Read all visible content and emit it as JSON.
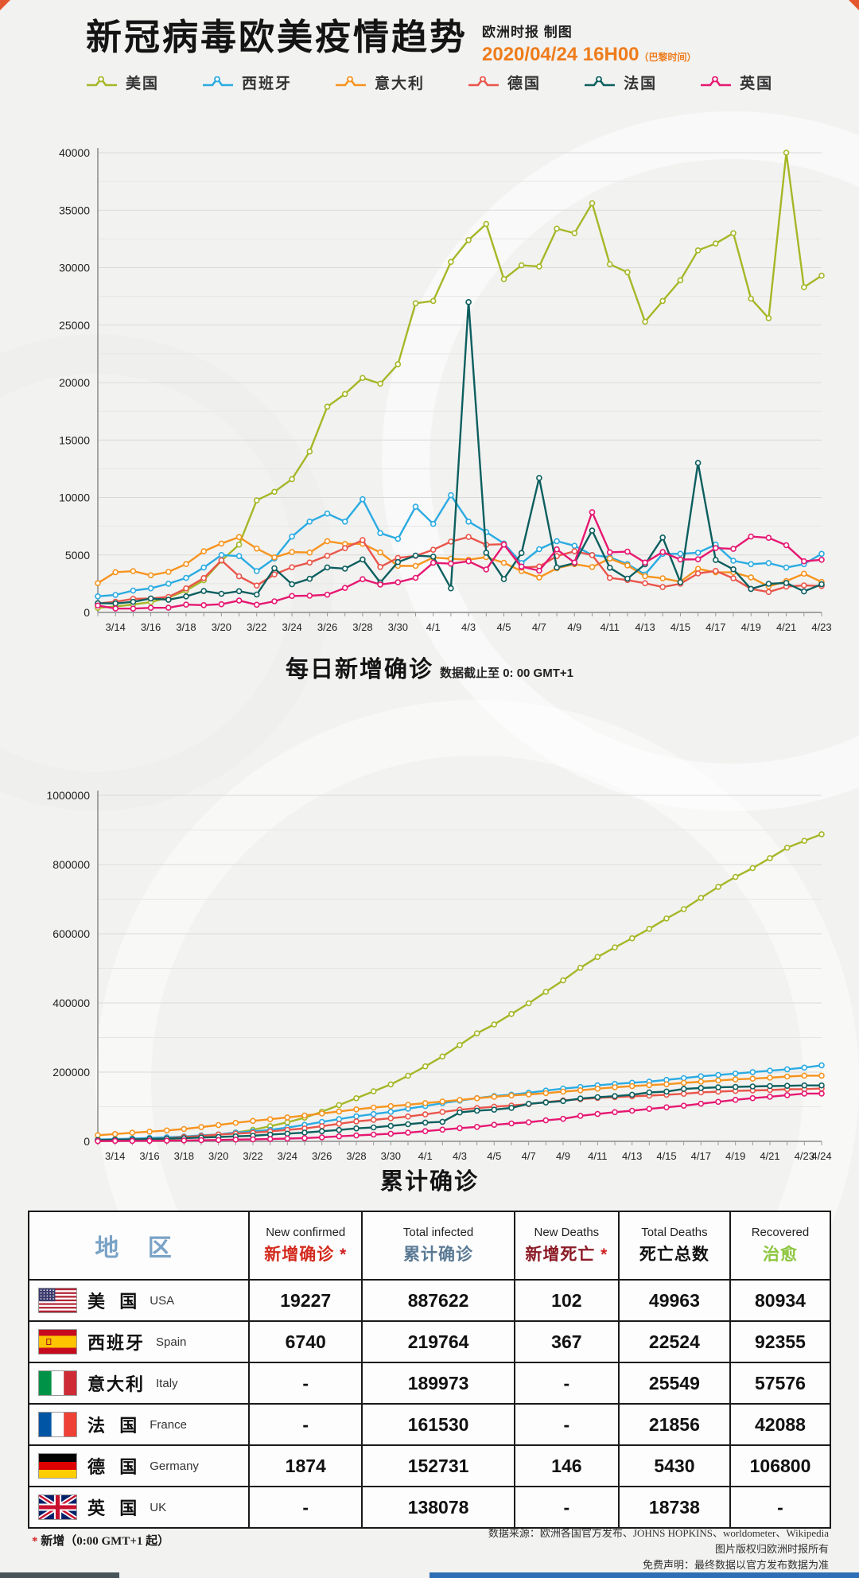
{
  "header": {
    "title": "新冠病毒欧美疫情趋势",
    "credit": "欧洲时报 制图",
    "datetime": "2020/04/24 16H00",
    "timezone": "（巴黎时间）",
    "accent_color": "#ee7c1b"
  },
  "legend": [
    {
      "label": "美国",
      "color": "#a6b727"
    },
    {
      "label": "西班牙",
      "color": "#2aabe2"
    },
    {
      "label": "意大利",
      "color": "#f7941e"
    },
    {
      "label": "德国",
      "color": "#e9554a"
    },
    {
      "label": "法国",
      "color": "#0d5f5f"
    },
    {
      "label": "英国",
      "color": "#e61871"
    }
  ],
  "chart_data": [
    {
      "type": "line",
      "title": "每日新增确诊",
      "subtitle": "数据截止至 0: 00 GMT+1",
      "ylim": [
        0,
        40000
      ],
      "ytick_step": 5000,
      "minor_step": 2500,
      "grid": true,
      "legend_position": "top",
      "x": [
        "3/13",
        "3/14",
        "3/15",
        "3/16",
        "3/17",
        "3/18",
        "3/19",
        "3/20",
        "3/21",
        "3/22",
        "3/23",
        "3/24",
        "3/25",
        "3/26",
        "3/27",
        "3/28",
        "3/29",
        "3/30",
        "3/31",
        "4/1",
        "4/2",
        "4/3",
        "4/4",
        "4/5",
        "4/6",
        "4/7",
        "4/8",
        "4/9",
        "4/10",
        "4/11",
        "4/12",
        "4/13",
        "4/14",
        "4/15",
        "4/16",
        "4/17",
        "4/18",
        "4/19",
        "4/20",
        "4/21",
        "4/22",
        "4/23"
      ],
      "label_every": 2,
      "label_last": false,
      "series": [
        {
          "name": "美国",
          "color": "#a6b727",
          "values": [
            400,
            510,
            690,
            890,
            1300,
            1900,
            2800,
            4500,
            5900,
            9750,
            10500,
            11600,
            14000,
            17900,
            19000,
            20400,
            19900,
            21600,
            26900,
            27100,
            30500,
            32400,
            33800,
            29000,
            30200,
            30100,
            33400,
            33000,
            35600,
            30300,
            29600,
            25300,
            27100,
            28900,
            31500,
            32100,
            33000,
            27300,
            25600,
            40000,
            28300,
            29300
          ]
        },
        {
          "name": "西班牙",
          "color": "#2aabe2",
          "values": [
            1400,
            1520,
            1900,
            2100,
            2500,
            3000,
            3900,
            5000,
            4900,
            3600,
            4700,
            6600,
            7900,
            8600,
            7900,
            9850,
            6900,
            6400,
            9200,
            7700,
            10200,
            7900,
            7000,
            6000,
            4300,
            5500,
            6200,
            5800,
            5000,
            4800,
            4200,
            3300,
            5100,
            5100,
            5200,
            5900,
            4500,
            4200,
            4300,
            3900,
            4200,
            5100
          ]
        },
        {
          "name": "意大利",
          "color": "#f7941e",
          "values": [
            2550,
            3500,
            3590,
            3230,
            3530,
            4210,
            5320,
            5990,
            6560,
            5560,
            4790,
            5250,
            5210,
            6200,
            5960,
            5970,
            5220,
            4050,
            4050,
            4780,
            4670,
            4590,
            4810,
            4320,
            3600,
            3040,
            3840,
            4200,
            3950,
            4690,
            4090,
            3150,
            2970,
            2670,
            3790,
            3490,
            3490,
            3050,
            2260,
            2730,
            3370,
            2650
          ]
        },
        {
          "name": "德国",
          "color": "#e9554a",
          "values": [
            780,
            930,
            1180,
            1210,
            1350,
            2090,
            2990,
            4530,
            3140,
            2340,
            3310,
            3930,
            4340,
            4930,
            5590,
            6290,
            3960,
            4750,
            4920,
            5450,
            6160,
            6570,
            5890,
            5940,
            3900,
            3990,
            4900,
            5320,
            4990,
            3000,
            2820,
            2540,
            2210,
            2490,
            3390,
            3610,
            2970,
            2050,
            1780,
            2240,
            2350,
            2300
          ]
        },
        {
          "name": "法国",
          "color": "#0d5f5f",
          "values": [
            800,
            780,
            920,
            1210,
            1100,
            1400,
            1860,
            1620,
            1850,
            1560,
            3840,
            2450,
            2930,
            3920,
            3810,
            4610,
            2600,
            4380,
            4950,
            4860,
            2100,
            27000,
            5200,
            2900,
            5170,
            11700,
            3900,
            4290,
            7120,
            3890,
            2940,
            4190,
            6520,
            2630,
            13000,
            4560,
            3750,
            2050,
            2490,
            2570,
            1830,
            2450
          ]
        },
        {
          "name": "英国",
          "color": "#e61871",
          "values": [
            600,
            340,
            330,
            400,
            410,
            680,
            640,
            710,
            1030,
            670,
            970,
            1430,
            1450,
            1540,
            2130,
            2890,
            2430,
            2620,
            3010,
            4320,
            4240,
            4450,
            3740,
            5900,
            3990,
            3630,
            5490,
            4340,
            8730,
            5230,
            5290,
            4340,
            5250,
            4600,
            4620,
            5600,
            5530,
            6600,
            6490,
            5850,
            4450,
            4580
          ]
        }
      ]
    },
    {
      "type": "line",
      "title": "累计确诊",
      "subtitle": "",
      "ylim": [
        0,
        1000000
      ],
      "ytick_step": 200000,
      "minor_step": 100000,
      "grid": true,
      "legend_position": "top",
      "x": [
        "3/13",
        "3/14",
        "3/15",
        "3/16",
        "3/17",
        "3/18",
        "3/19",
        "3/20",
        "3/21",
        "3/22",
        "3/23",
        "3/24",
        "3/25",
        "3/26",
        "3/27",
        "3/28",
        "3/29",
        "3/30",
        "3/31",
        "4/1",
        "4/2",
        "4/3",
        "4/4",
        "4/5",
        "4/6",
        "4/7",
        "4/8",
        "4/9",
        "4/10",
        "4/11",
        "4/12",
        "4/13",
        "4/14",
        "4/15",
        "4/16",
        "4/17",
        "4/18",
        "4/19",
        "4/20",
        "4/21",
        "4/22",
        "4/23",
        "4/24"
      ],
      "label_every": 2,
      "label_last": true,
      "series": [
        {
          "name": "美国",
          "color": "#a6b727",
          "values": [
            2200,
            2700,
            3500,
            4600,
            6400,
            9200,
            13700,
            19100,
            25500,
            33300,
            43800,
            54900,
            68400,
            85600,
            104800,
            124700,
            144600,
            164600,
            189600,
            216700,
            245400,
            278500,
            312200,
            337900,
            368200,
            398800,
            432100,
            465300,
            501600,
            532900,
            560400,
            586900,
            614200,
            644100,
            671300,
            703700,
            735300,
            764100,
            789700,
            818700,
            848700,
            868400,
            887622
          ]
        },
        {
          "name": "西班牙",
          "color": "#2aabe2",
          "values": [
            5230,
            6390,
            7800,
            9940,
            11750,
            14000,
            17150,
            19980,
            25400,
            28600,
            33090,
            39670,
            47610,
            56190,
            64060,
            72250,
            78800,
            85200,
            94420,
            102140,
            110240,
            117710,
            124740,
            130760,
            135030,
            140510,
            146690,
            152450,
            157020,
            161850,
            166020,
            169500,
            172540,
            177630,
            182820,
            188070,
            191730,
            195940,
            200210,
            204180,
            208390,
            213020,
            219764
          ]
        },
        {
          "name": "意大利",
          "color": "#f7941e",
          "values": [
            17660,
            21160,
            24750,
            27980,
            31510,
            35710,
            41040,
            47020,
            53580,
            59140,
            63930,
            69180,
            74390,
            80590,
            86500,
            92470,
            97690,
            101740,
            105790,
            110570,
            115240,
            119830,
            124630,
            128950,
            132550,
            135590,
            139420,
            143630,
            147580,
            152270,
            156360,
            159520,
            162490,
            165160,
            168940,
            172430,
            175930,
            178970,
            181230,
            183960,
            187330,
            189970,
            189973
          ]
        },
        {
          "name": "德国",
          "color": "#e9554a",
          "values": [
            3680,
            4590,
            5800,
            7160,
            8200,
            12330,
            15320,
            19850,
            22210,
            24870,
            29060,
            32990,
            37320,
            43940,
            50870,
            57700,
            62100,
            66890,
            71810,
            77870,
            84790,
            91160,
            96090,
            100120,
            103380,
            107660,
            113300,
            118240,
            122170,
            125450,
            127850,
            130070,
            132210,
            134750,
            137440,
            141400,
            143720,
            145740,
            147070,
            148290,
            150650,
            150900,
            152731
          ]
        },
        {
          "name": "法国",
          "color": "#0d5f5f",
          "values": [
            3660,
            4500,
            5420,
            6630,
            7730,
            9130,
            11000,
            12610,
            14460,
            16020,
            19860,
            22300,
            25230,
            29150,
            32960,
            37570,
            40170,
            44550,
            49500,
            54360,
            56460,
            83460,
            88660,
            91560,
            96730,
            108430,
            112330,
            116620,
            123740,
            127630,
            130570,
            134760,
            141280,
            143910,
            151500,
            154200,
            156000,
            157300,
            158600,
            159700,
            160500,
            161530,
            161530
          ]
        },
        {
          "name": "英国",
          "color": "#e61871",
          "values": [
            800,
            1140,
            1390,
            1540,
            1950,
            2630,
            3270,
            3980,
            5020,
            5680,
            6650,
            8080,
            9530,
            11660,
            14540,
            17090,
            19520,
            22140,
            25150,
            29470,
            33720,
            38170,
            41900,
            47810,
            51610,
            55240,
            60730,
            65080,
            73760,
            78990,
            84280,
            88620,
            93870,
            98480,
            103090,
            108690,
            114220,
            120070,
            124740,
            129040,
            133500,
            138078,
            138078
          ]
        }
      ]
    }
  ],
  "table": {
    "region_header": "地  区",
    "columns": [
      {
        "en": "New confirmed",
        "zh": "新增确诊",
        "star": " *",
        "zh_color": "#d42b1e"
      },
      {
        "en": "Total infected",
        "zh": "累计确诊",
        "star": "",
        "zh_color": "#5a7a94"
      },
      {
        "en": "New Deaths",
        "zh": "新增死亡",
        "star": " *",
        "zh_color": "#8c1b26"
      },
      {
        "en": "Total Deaths",
        "zh": "死亡总数",
        "star": "",
        "zh_color": "#111111"
      },
      {
        "en": "Recovered",
        "zh": "治愈",
        "star": "",
        "zh_color": "#8dc63f"
      }
    ],
    "rows": [
      {
        "flag": "us",
        "zh": "美  国",
        "en": "USA",
        "values": [
          "19227",
          "887622",
          "102",
          "49963",
          "80934"
        ]
      },
      {
        "flag": "es",
        "zh": "西班牙",
        "en": "Spain",
        "values": [
          "6740",
          "219764",
          "367",
          "22524",
          "92355"
        ]
      },
      {
        "flag": "it",
        "zh": "意大利",
        "en": "Italy",
        "values": [
          "-",
          "189973",
          "-",
          "25549",
          "57576"
        ]
      },
      {
        "flag": "fr",
        "zh": "法  国",
        "en": "France",
        "values": [
          "-",
          "161530",
          "-",
          "21856",
          "42088"
        ]
      },
      {
        "flag": "de",
        "zh": "德  国",
        "en": "Germany",
        "values": [
          "1874",
          "152731",
          "146",
          "5430",
          "106800"
        ]
      },
      {
        "flag": "gb",
        "zh": "英  国",
        "en": "UK",
        "values": [
          "-",
          "138078",
          "-",
          "18738",
          "-"
        ]
      }
    ]
  },
  "footer": {
    "star": "*",
    "note": "新增（0:00 GMT+1 起）",
    "source": "数据来源：欧洲各国官方发布、JOHNS HOPKINS、worldometer、Wikipedia",
    "copyright": "图片版权归欧洲时报所有",
    "disclaimer": "免费声明：最终数据以官方发布数据为准"
  }
}
